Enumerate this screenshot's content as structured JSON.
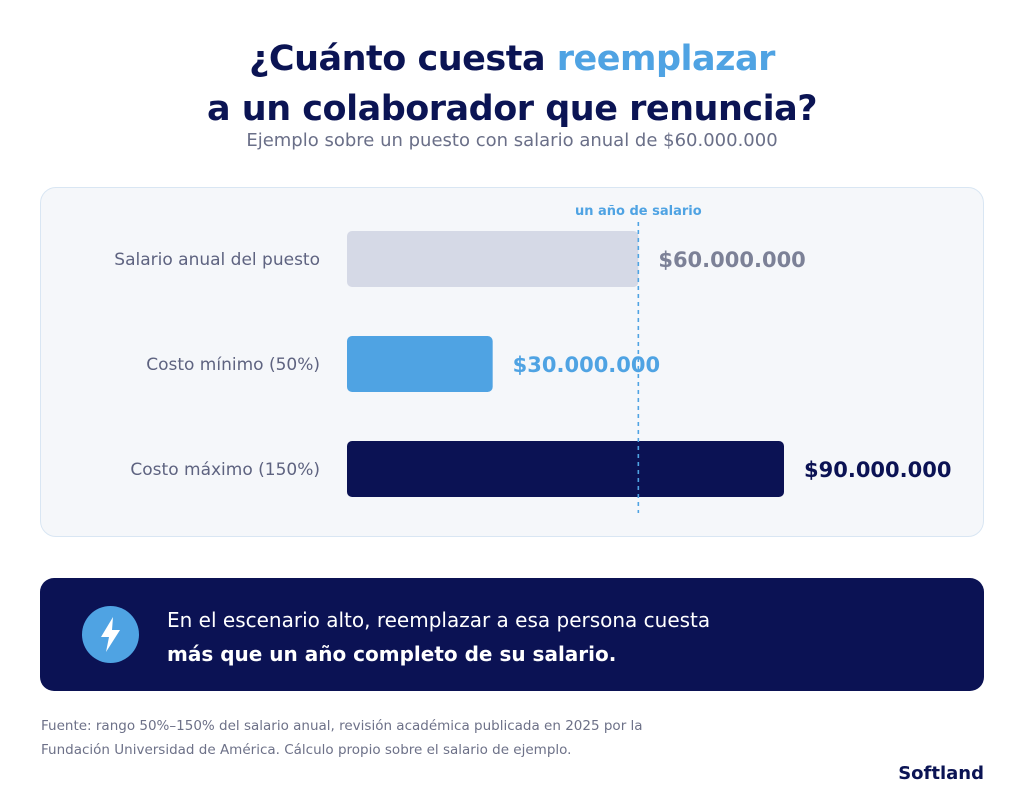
{
  "header": {
    "title_part1": "¿Cuánto cuesta ",
    "title_accent": "reemplazar",
    "title_part2": "a un colaborador que renuncia?",
    "subtitle": "Ejemplo sobre un puesto con salario anual de $60.000.000"
  },
  "chart_data": {
    "type": "bar",
    "orientation": "horizontal",
    "categories": [
      "Salario anual del puesto",
      "Costo mínimo (50%)",
      "Costo máximo (150%)"
    ],
    "values": [
      60000000,
      30000000,
      90000000
    ],
    "value_labels": [
      "$60.000.000",
      "$30.000.000",
      "$90.000.000"
    ],
    "bar_colors": [
      "#d5d9e6",
      "#4fa3e3",
      "#0b1254"
    ],
    "label_colors": [
      "#7c8197",
      "#4fa3e3",
      "#0b1254"
    ],
    "xlim": [
      0,
      90000000
    ],
    "reference_line": {
      "value": 60000000,
      "label": "un año de salario",
      "color": "#4fa3e3"
    },
    "grid": false
  },
  "callout": {
    "icon": "lightning-icon",
    "line1": "En el escenario alto, reemplazar a esa persona cuesta",
    "line2": "más que un año completo de su salario."
  },
  "footer": {
    "source_line1": "Fuente: rango 50%–150% del salario anual, revisión académica publicada en 2025 por la",
    "source_line2": "Fundación Universidad de América. Cálculo propio sobre el salario de ejemplo.",
    "brand": "Softland"
  }
}
